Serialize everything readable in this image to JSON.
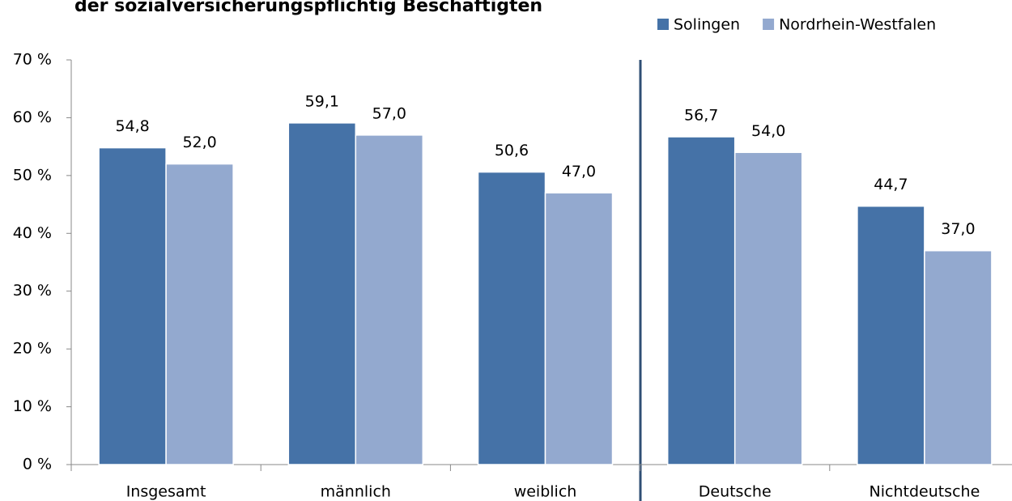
{
  "chart_data": {
    "type": "bar",
    "title": "der sozialversicherungspflichtig Beschäftigten",
    "categories": [
      "Insgesamt",
      "männlich",
      "weiblich",
      "Deutsche",
      "Nichtdeutsche"
    ],
    "series": [
      {
        "name": "Solingen",
        "color": "#4572a7",
        "values": [
          54.8,
          59.1,
          50.6,
          56.7,
          44.7
        ],
        "value_labels": [
          "54,8",
          "59,1",
          "50,6",
          "56,7",
          "44,7"
        ]
      },
      {
        "name": "Nordrhein-Westfalen",
        "color": "#93a9cf",
        "values": [
          52.0,
          57.0,
          47.0,
          54.0,
          37.0
        ],
        "value_labels": [
          "52,0",
          "57,0",
          "47,0",
          "54,0",
          "37,0"
        ]
      }
    ],
    "ylim": [
      0,
      70
    ],
    "yticks": [
      {
        "value": 0,
        "label": "0 %"
      },
      {
        "value": 10,
        "label": "10 %"
      },
      {
        "value": 20,
        "label": "20 %"
      },
      {
        "value": 30,
        "label": "30 %"
      },
      {
        "value": 40,
        "label": "40 %"
      },
      {
        "value": 50,
        "label": "50 %"
      },
      {
        "value": 60,
        "label": "60 %"
      },
      {
        "value": 70,
        "label": "70 %"
      }
    ],
    "grid": false,
    "legend": "top-right"
  }
}
